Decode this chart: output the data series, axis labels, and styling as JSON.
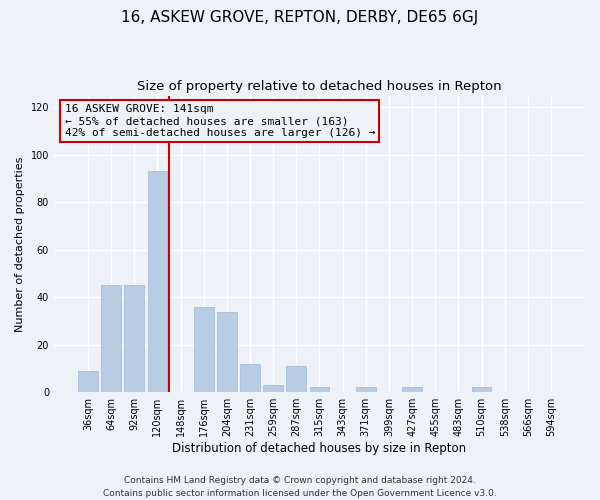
{
  "title": "16, ASKEW GROVE, REPTON, DERBY, DE65 6GJ",
  "subtitle": "Size of property relative to detached houses in Repton",
  "xlabel": "Distribution of detached houses by size in Repton",
  "ylabel": "Number of detached properties",
  "bar_color": "#b8cce4",
  "bar_edgecolor": "#a0b8d8",
  "categories": [
    "36sqm",
    "64sqm",
    "92sqm",
    "120sqm",
    "148sqm",
    "176sqm",
    "204sqm",
    "231sqm",
    "259sqm",
    "287sqm",
    "315sqm",
    "343sqm",
    "371sqm",
    "399sqm",
    "427sqm",
    "455sqm",
    "483sqm",
    "510sqm",
    "538sqm",
    "566sqm",
    "594sqm"
  ],
  "values": [
    9,
    45,
    45,
    93,
    0,
    36,
    34,
    12,
    3,
    11,
    2,
    0,
    2,
    0,
    2,
    0,
    0,
    2,
    0,
    0,
    0
  ],
  "vline_color": "#cc0000",
  "ylim": [
    0,
    125
  ],
  "yticks": [
    0,
    20,
    40,
    60,
    80,
    100,
    120
  ],
  "annotation_line1": "16 ASKEW GROVE: 141sqm",
  "annotation_line2": "← 55% of detached houses are smaller (163)",
  "annotation_line3": "42% of semi-detached houses are larger (126) →",
  "annotation_box_edgecolor": "#cc0000",
  "footer1": "Contains HM Land Registry data © Crown copyright and database right 2024.",
  "footer2": "Contains public sector information licensed under the Open Government Licence v3.0.",
  "bg_color": "#eef2f8",
  "grid_color": "#ffffff",
  "title_fontsize": 11,
  "subtitle_fontsize": 9.5,
  "xlabel_fontsize": 8.5,
  "ylabel_fontsize": 8,
  "tick_fontsize": 7,
  "annotation_fontsize": 8,
  "footer_fontsize": 6.5
}
